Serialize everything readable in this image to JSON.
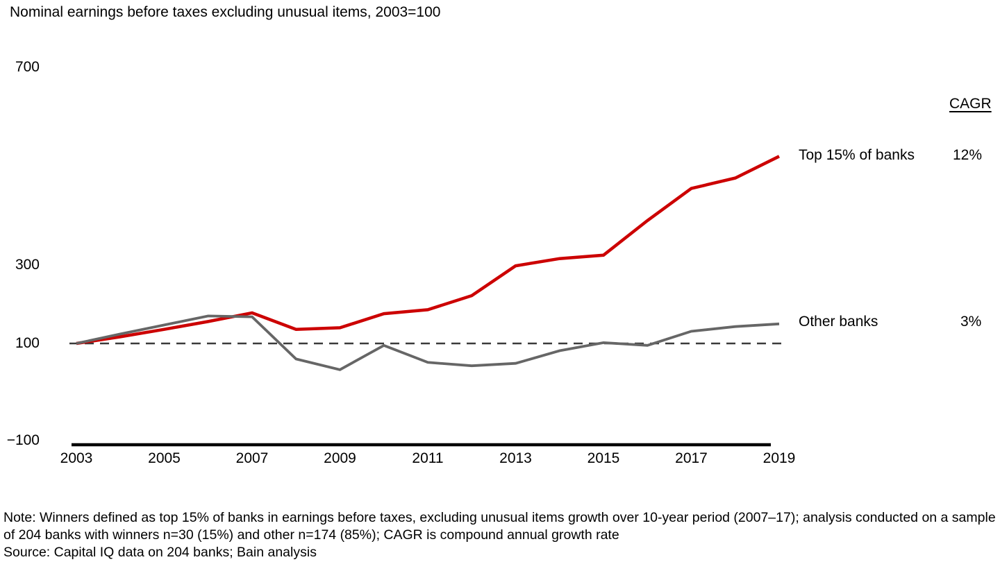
{
  "title": "Nominal earnings before taxes excluding unusual items, 2003=100",
  "cagr_header": "CAGR",
  "chart_data": {
    "type": "line",
    "title": "Nominal earnings before taxes excluding unusual items, 2003=100",
    "x": [
      2003,
      2004,
      2005,
      2006,
      2007,
      2008,
      2009,
      2010,
      2011,
      2012,
      2013,
      2014,
      2015,
      2016,
      2017,
      2018,
      2019
    ],
    "series": [
      {
        "name": "Top 15% of banks",
        "cagr": "12%",
        "color": "#cc0000",
        "values": [
          100,
          117,
          136,
          156,
          178,
          136,
          140,
          176,
          186,
          222,
          298,
          313,
          320,
          390,
          455,
          476,
          520
        ]
      },
      {
        "name": "Other banks",
        "cagr": "3%",
        "color": "#666666",
        "values": [
          100,
          124,
          147,
          170,
          168,
          68,
          46,
          96,
          61,
          54,
          59,
          85,
          102,
          96,
          131,
          143,
          150
        ]
      }
    ],
    "y_ticks": [
      {
        "value": 700,
        "label": "700"
      },
      {
        "value": 300,
        "label": "300"
      },
      {
        "value": 100,
        "label": "100"
      },
      {
        "value": -100,
        "label": "−100"
      }
    ],
    "x_ticks": [
      2003,
      2005,
      2007,
      2009,
      2011,
      2013,
      2015,
      2017,
      2019
    ],
    "baseline": {
      "value": 100,
      "style": "dashed",
      "color": "#3a3a3a"
    },
    "axis_color": "#000000",
    "ylim": [
      -100,
      700
    ],
    "grid": false,
    "legend_position": "right-of-line-ends"
  },
  "note": "Note: Winners defined as top 15% of banks in earnings before taxes, excluding unusual items growth over 10-year period (2007–17); analysis conducted on a sample of 204 banks with winners n=30 (15%) and other n=174 (85%); CAGR is compound annual growth rate",
  "source": "Source: Capital IQ data on 204 banks; Bain analysis"
}
